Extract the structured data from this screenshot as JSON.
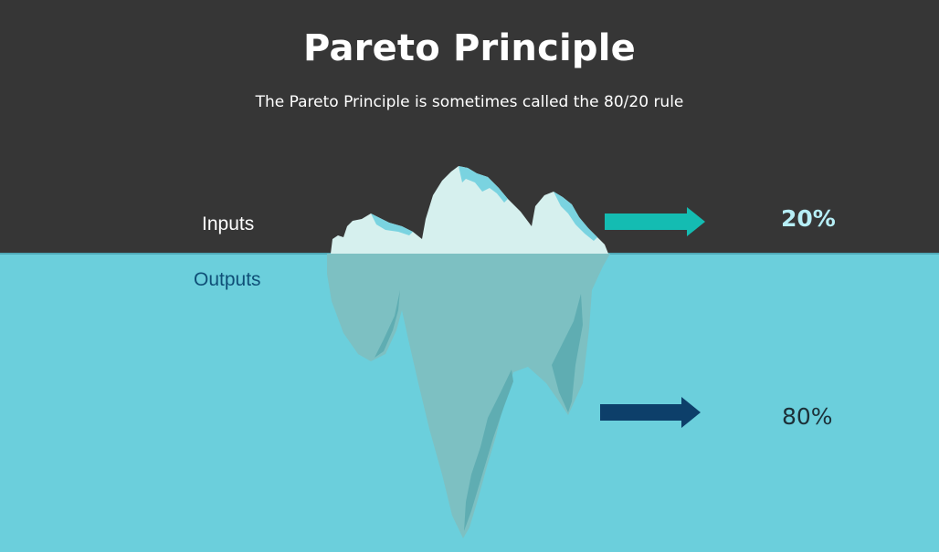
{
  "header": {
    "title": "Pareto Principle",
    "subtitle": "The Pareto Principle is sometimes called the 80/20 rule"
  },
  "labels": {
    "inputs": "Inputs",
    "outputs": "Outputs"
  },
  "percentages": {
    "above": "20%",
    "below": "80%"
  },
  "icons": {
    "iceberg": "iceberg-icon",
    "arrow_top": "right-arrow-icon",
    "arrow_bottom": "right-arrow-icon"
  },
  "colors": {
    "sky": "#363636",
    "water": "#6bcfdc",
    "ice_above": "#d6f0ee",
    "ice_below": "#7dc0c2",
    "arrow_top": "#14bcb2",
    "arrow_bottom": "#0d3f6a"
  }
}
